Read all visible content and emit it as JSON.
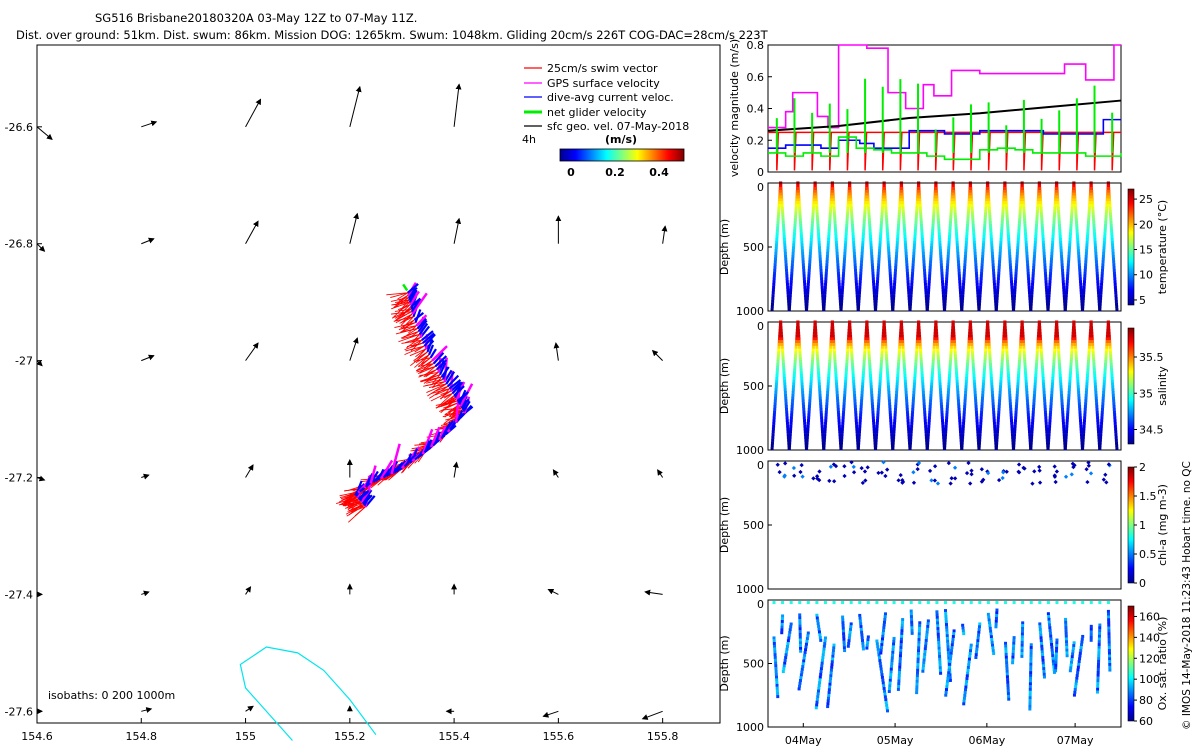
{
  "title": {
    "line1": "SG516 Brisbane20180320A 03-May 12Z to 07-May 11Z.",
    "line2": "Dist. over ground: 51km. Dist. swum: 86km. Mission DOG: 1265km. Swum: 1048km. Gliding 20cm/s 226T COG-DAC=28cm/s 223T"
  },
  "footer_note": "© IMOS 14-May-2018 11:23:43 Hobart time. no QC",
  "chart_data": [
    {
      "type": "map",
      "name": "glider-track-map",
      "xticks": [
        "154.6",
        "154.8",
        "155",
        "155.2",
        "155.4",
        "155.6",
        "155.8"
      ],
      "yticks": [
        "-26.6",
        "-26.8",
        "-27",
        "-27.2",
        "-27.4",
        "-27.6"
      ],
      "xlim": [
        154.6,
        155.91
      ],
      "ylim": [
        -27.62,
        -26.46
      ],
      "legend": [
        {
          "label": "25cm/s swim vector",
          "color": "#ff0000"
        },
        {
          "label": "GPS surface velocity",
          "color": "#ff00ff"
        },
        {
          "label": "dive-avg current veloc.",
          "color": "#0000ff"
        },
        {
          "label": "net glider velocity",
          "color": "#00ee00"
        },
        {
          "label": "sfc geo. vel. 07-May-2018",
          "color": "#000000"
        }
      ],
      "vector_scale_label": "4h",
      "colorbar": {
        "title": "(m/s)",
        "ticks": [
          "0",
          "0.2",
          "0.4"
        ],
        "range": [
          0,
          0.5
        ]
      },
      "isobaths_label": "isobaths: 0   200  1000m",
      "track": [
        [
          155.23,
          -27.25
        ],
        [
          155.21,
          -27.23
        ],
        [
          155.24,
          -27.21
        ],
        [
          155.29,
          -27.19
        ],
        [
          155.34,
          -27.16
        ],
        [
          155.38,
          -27.13
        ],
        [
          155.42,
          -27.09
        ],
        [
          155.4,
          -27.06
        ],
        [
          155.37,
          -27.02
        ],
        [
          155.34,
          -26.97
        ],
        [
          155.32,
          -26.92
        ],
        [
          155.31,
          -26.88
        ]
      ],
      "geo_vectors": [
        {
          "lon": 154.6,
          "lat": -26.6,
          "u": 0.06,
          "v": -0.05
        },
        {
          "lon": 154.8,
          "lat": -26.6,
          "u": 0.06,
          "v": 0.02
        },
        {
          "lon": 155.0,
          "lat": -26.6,
          "u": 0.06,
          "v": 0.11
        },
        {
          "lon": 155.2,
          "lat": -26.6,
          "u": 0.04,
          "v": 0.16
        },
        {
          "lon": 155.4,
          "lat": -26.6,
          "u": 0.02,
          "v": 0.17
        },
        {
          "lon": 154.6,
          "lat": -26.8,
          "u": 0.03,
          "v": -0.03
        },
        {
          "lon": 154.8,
          "lat": -26.8,
          "u": 0.05,
          "v": 0.02
        },
        {
          "lon": 155.0,
          "lat": -26.8,
          "u": 0.05,
          "v": 0.09
        },
        {
          "lon": 155.2,
          "lat": -26.8,
          "u": 0.03,
          "v": 0.12
        },
        {
          "lon": 155.4,
          "lat": -26.8,
          "u": 0.02,
          "v": 0.1
        },
        {
          "lon": 155.6,
          "lat": -26.8,
          "u": 0.0,
          "v": 0.11
        },
        {
          "lon": 155.8,
          "lat": -26.8,
          "u": 0.01,
          "v": 0.07
        },
        {
          "lon": 154.6,
          "lat": -27.0,
          "u": 0.02,
          "v": -0.02
        },
        {
          "lon": 154.8,
          "lat": -27.0,
          "u": 0.05,
          "v": 0.02
        },
        {
          "lon": 155.0,
          "lat": -27.0,
          "u": 0.05,
          "v": 0.07
        },
        {
          "lon": 155.2,
          "lat": -27.0,
          "u": 0.03,
          "v": 0.09
        },
        {
          "lon": 155.6,
          "lat": -27.0,
          "u": -0.01,
          "v": 0.07
        },
        {
          "lon": 155.8,
          "lat": -27.0,
          "u": -0.04,
          "v": 0.04
        },
        {
          "lon": 154.6,
          "lat": -27.2,
          "u": 0.03,
          "v": -0.01
        },
        {
          "lon": 154.8,
          "lat": -27.2,
          "u": 0.03,
          "v": 0.01
        },
        {
          "lon": 155.0,
          "lat": -27.2,
          "u": 0.03,
          "v": 0.05
        },
        {
          "lon": 155.2,
          "lat": -27.2,
          "u": 0.0,
          "v": 0.07
        },
        {
          "lon": 155.4,
          "lat": -27.2,
          "u": 0.01,
          "v": 0.06
        },
        {
          "lon": 155.6,
          "lat": -27.2,
          "u": -0.02,
          "v": 0.03
        },
        {
          "lon": 155.8,
          "lat": -27.2,
          "u": -0.02,
          "v": 0.03
        },
        {
          "lon": 154.6,
          "lat": -27.4,
          "u": 0.02,
          "v": 0.0
        },
        {
          "lon": 154.8,
          "lat": -27.4,
          "u": 0.03,
          "v": 0.01
        },
        {
          "lon": 155.0,
          "lat": -27.4,
          "u": 0.02,
          "v": 0.03
        },
        {
          "lon": 155.2,
          "lat": -27.4,
          "u": 0.0,
          "v": 0.04
        },
        {
          "lon": 155.4,
          "lat": -27.4,
          "u": 0.0,
          "v": 0.04
        },
        {
          "lon": 155.6,
          "lat": -27.4,
          "u": -0.04,
          "v": 0.02
        },
        {
          "lon": 155.8,
          "lat": -27.4,
          "u": -0.07,
          "v": 0.01
        },
        {
          "lon": 154.6,
          "lat": -27.6,
          "u": 0.02,
          "v": 0.0
        },
        {
          "lon": 154.8,
          "lat": -27.6,
          "u": 0.04,
          "v": 0.01
        },
        {
          "lon": 155.0,
          "lat": -27.6,
          "u": 0.03,
          "v": 0.02
        },
        {
          "lon": 155.2,
          "lat": -27.6,
          "u": 0.0,
          "v": 0.02
        },
        {
          "lon": 155.4,
          "lat": -27.6,
          "u": -0.03,
          "v": 0.0
        },
        {
          "lon": 155.6,
          "lat": -27.6,
          "u": -0.06,
          "v": -0.02
        },
        {
          "lon": 155.8,
          "lat": -27.6,
          "u": -0.08,
          "v": -0.03
        }
      ],
      "isobath_1000m": [
        [
          155.09,
          -27.65
        ],
        [
          155.0,
          -27.56
        ],
        [
          154.99,
          -27.52
        ],
        [
          155.04,
          -27.49
        ],
        [
          155.1,
          -27.5
        ],
        [
          155.15,
          -27.53
        ],
        [
          155.2,
          -27.58
        ],
        [
          155.25,
          -27.64
        ]
      ]
    },
    {
      "type": "line",
      "name": "velocity-magnitude",
      "ylabel": "velocity magnitude (m/s)",
      "ylim": [
        0,
        0.8
      ],
      "yticks": [
        "0",
        "0.2",
        "0.4",
        "0.6",
        "0.8"
      ],
      "series": [
        {
          "name": "GPS surface velocity",
          "color": "#ff00ff",
          "x": [
            0,
            0.05,
            0.07,
            0.11,
            0.14,
            0.17,
            0.2,
            0.26,
            0.28,
            0.34,
            0.39,
            0.44,
            0.47,
            0.52,
            0.58,
            0.6,
            0.7,
            0.84,
            0.86,
            0.9,
            0.93,
            0.96,
            0.98
          ],
          "y": [
            0.28,
            0.38,
            0.5,
            0.5,
            0.35,
            0.28,
            0.8,
            0.8,
            0.78,
            0.5,
            0.4,
            0.55,
            0.48,
            0.64,
            0.64,
            0.62,
            0.62,
            0.68,
            0.68,
            0.58,
            0.58,
            0.58,
            0.8
          ]
        },
        {
          "name": "dive-avg current veloc.",
          "color": "#0000ff",
          "x": [
            0,
            0.05,
            0.1,
            0.15,
            0.2,
            0.26,
            0.3,
            0.4,
            0.48,
            0.5,
            0.6,
            0.7,
            0.78,
            0.84,
            0.9,
            0.95,
            1.0
          ],
          "y": [
            0.15,
            0.17,
            0.17,
            0.15,
            0.2,
            0.18,
            0.15,
            0.26,
            0.26,
            0.24,
            0.26,
            0.26,
            0.24,
            0.24,
            0.24,
            0.33,
            0.33
          ]
        },
        {
          "name": "net glider velocity",
          "color": "#00ee00",
          "x": [
            0,
            0.05,
            0.1,
            0.15,
            0.2,
            0.25,
            0.3,
            0.35,
            0.4,
            0.45,
            0.5,
            0.55,
            0.6,
            0.65,
            0.7,
            0.75,
            0.8,
            0.85,
            0.9,
            0.95,
            1.0
          ],
          "y": [
            0.12,
            0.1,
            0.12,
            0.1,
            0.22,
            0.15,
            0.14,
            0.12,
            0.12,
            0.1,
            0.08,
            0.08,
            0.14,
            0.15,
            0.14,
            0.12,
            0.12,
            0.12,
            0.1,
            0.1,
            0.12
          ]
        },
        {
          "name": "sfc geo. vel.",
          "color": "#000000",
          "x": [
            0,
            0.2,
            0.4,
            0.6,
            0.8,
            1.0
          ],
          "y": [
            0.26,
            0.29,
            0.34,
            0.37,
            0.41,
            0.45
          ]
        }
      ],
      "swim_speed": 0.25
    },
    {
      "type": "heatmap",
      "name": "temperature-section",
      "ylabel": "Depth (m)",
      "yticks": [
        "0",
        "500",
        "1000"
      ],
      "ylim": [
        0,
        1000
      ],
      "colorbar_label": "temperature (°C)",
      "colorbar_ticks": [
        "5",
        "10",
        "15",
        "20",
        "25"
      ],
      "range": [
        4,
        27
      ],
      "profiles": 20
    },
    {
      "type": "heatmap",
      "name": "salinity-section",
      "ylabel": "Depth (m)",
      "yticks": [
        "0",
        "500",
        "1000"
      ],
      "ylim": [
        0,
        1000
      ],
      "colorbar_label": "salinity",
      "colorbar_ticks": [
        "34.5",
        "35",
        "35.5"
      ],
      "range": [
        34.3,
        35.9
      ],
      "profiles": 20
    },
    {
      "type": "scatter",
      "name": "chla-section",
      "ylabel": "Depth (m)",
      "yticks": [
        "0",
        "500",
        "1000"
      ],
      "ylim": [
        0,
        1000
      ],
      "colorbar_label": "chl-a (mg m-3)",
      "colorbar_ticks": [
        "0",
        "0.5",
        "1",
        "1.5",
        "2"
      ],
      "range": [
        0,
        2
      ]
    },
    {
      "type": "scatter",
      "name": "oxygen-section",
      "ylabel": "Depth (m)",
      "yticks": [
        "0",
        "500",
        "1000"
      ],
      "ylim": [
        0,
        1000
      ],
      "colorbar_label": "Ox. sat. ratio (%)",
      "colorbar_ticks": [
        "60",
        "80",
        "100",
        "120",
        "140",
        "160"
      ],
      "range": [
        60,
        170
      ],
      "xticks": [
        "04May",
        "05May",
        "06May",
        "07May"
      ],
      "xtick_pos": [
        0.1,
        0.36,
        0.62,
        0.87
      ]
    }
  ]
}
